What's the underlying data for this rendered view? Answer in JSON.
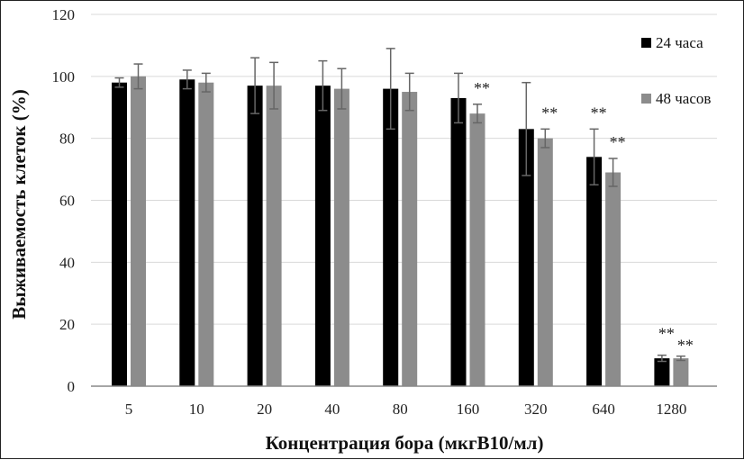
{
  "chart_data": {
    "type": "bar",
    "xlabel": "Концентрация бора (мкгB10/мл)",
    "ylabel": "Выживаемость клеток (%)",
    "ylim": [
      0,
      120
    ],
    "yticks": [
      "0",
      "20",
      "40",
      "60",
      "80",
      "100",
      "120"
    ],
    "grid": "horizontal",
    "legend_position": "top-right",
    "categories": [
      "5",
      "10",
      "20",
      "40",
      "80",
      "160",
      "320",
      "640",
      "1280"
    ],
    "series": [
      {
        "name": "24 часа",
        "color": "#000000",
        "values": [
          98,
          99,
          97,
          97,
          96,
          93,
          83,
          74,
          9
        ],
        "errors": [
          1.5,
          3,
          9,
          8,
          13,
          8,
          15,
          9,
          1
        ],
        "significance": [
          "",
          "",
          "",
          "",
          "",
          "",
          "",
          "**",
          "**"
        ]
      },
      {
        "name": "48 часов",
        "color": "#8c8c8c",
        "values": [
          100,
          98,
          97,
          96,
          95,
          88,
          80,
          69,
          9
        ],
        "errors": [
          4,
          3,
          7.5,
          6.5,
          6,
          3,
          3,
          4.5,
          0.7
        ],
        "significance": [
          "",
          "",
          "",
          "",
          "",
          "**",
          "**",
          "**",
          "**"
        ]
      }
    ]
  }
}
